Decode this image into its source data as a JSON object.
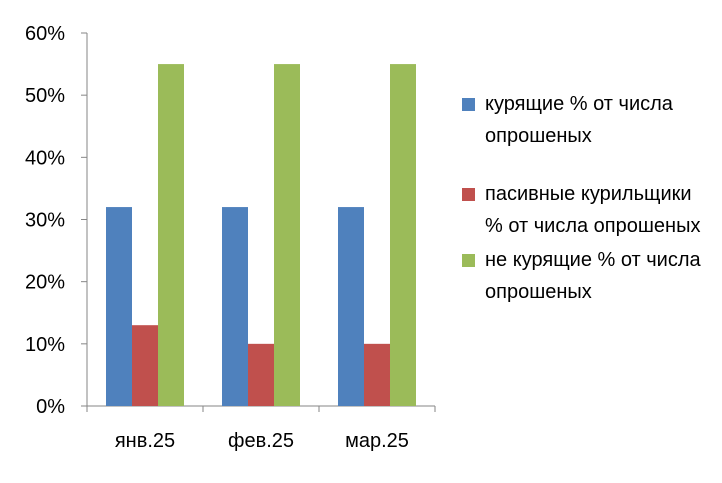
{
  "chart_data": {
    "type": "bar",
    "categories": [
      "янв.25",
      "фев.25",
      "мар.25"
    ],
    "series": [
      {
        "name": "курящие % от числа опрошеных",
        "color": "#4F81BD",
        "values": [
          32,
          32,
          32
        ]
      },
      {
        "name": "пасивные курильщики % от числа опрошеных",
        "color": "#C0504D",
        "values": [
          13,
          10,
          10
        ]
      },
      {
        "name": "не курящие % от числа опрошеных",
        "color": "#9BBB59",
        "values": [
          55,
          55,
          55
        ]
      }
    ],
    "yticks": [
      "0%",
      "10%",
      "20%",
      "30%",
      "40%",
      "50%",
      "60%"
    ],
    "ylim": [
      0,
      60
    ],
    "grid": false,
    "legend_position": "right"
  }
}
